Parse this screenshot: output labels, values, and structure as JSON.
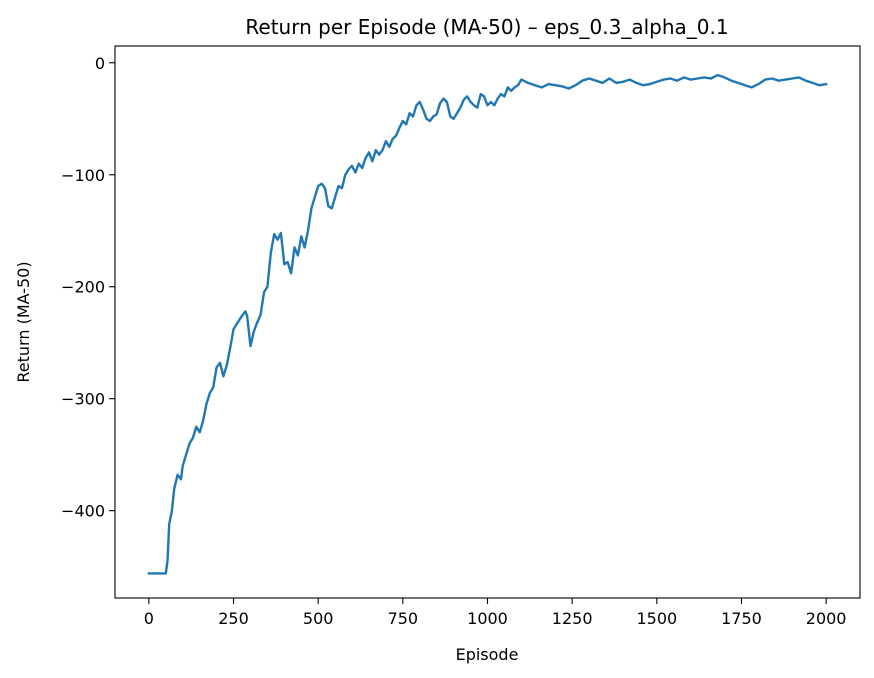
{
  "chart_data": {
    "type": "line",
    "title": "Return per Episode (MA-50) – eps_0.3_alpha_0.1",
    "xlabel": "Episode",
    "ylabel": "Return (MA-50)",
    "xlim": [
      -100,
      2100
    ],
    "ylim": [
      -478,
      15
    ],
    "xticks": [
      0,
      250,
      500,
      750,
      1000,
      1250,
      1500,
      1750,
      2000
    ],
    "xtick_labels": [
      "0",
      "250",
      "500",
      "750",
      "1000",
      "1250",
      "1500",
      "1750",
      "2000"
    ],
    "yticks": [
      -400,
      -300,
      -200,
      -100,
      0
    ],
    "ytick_labels": [
      "−400",
      "−300",
      "−200",
      "−100",
      "0"
    ],
    "grid": false,
    "series": [
      {
        "name": "MA-50",
        "color": "#1f77b4",
        "x": [
          0,
          50,
          55,
          60,
          68,
          75,
          85,
          95,
          100,
          110,
          120,
          130,
          140,
          150,
          160,
          170,
          180,
          190,
          200,
          210,
          220,
          230,
          240,
          250,
          262,
          275,
          285,
          290,
          300,
          310,
          320,
          330,
          340,
          350,
          360,
          370,
          380,
          390,
          400,
          410,
          420,
          430,
          440,
          450,
          460,
          470,
          480,
          490,
          500,
          510,
          520,
          530,
          540,
          550,
          560,
          570,
          580,
          590,
          600,
          610,
          620,
          630,
          640,
          650,
          660,
          670,
          680,
          690,
          700,
          710,
          720,
          730,
          740,
          750,
          760,
          770,
          780,
          790,
          800,
          810,
          820,
          830,
          840,
          850,
          860,
          870,
          880,
          890,
          900,
          910,
          920,
          930,
          940,
          950,
          960,
          970,
          980,
          990,
          1000,
          1010,
          1020,
          1030,
          1040,
          1050,
          1060,
          1070,
          1080,
          1090,
          1100,
          1120,
          1140,
          1160,
          1180,
          1200,
          1220,
          1240,
          1260,
          1280,
          1300,
          1320,
          1340,
          1360,
          1380,
          1400,
          1420,
          1440,
          1460,
          1480,
          1500,
          1520,
          1540,
          1560,
          1580,
          1600,
          1620,
          1640,
          1660,
          1680,
          1700,
          1720,
          1740,
          1760,
          1780,
          1800,
          1820,
          1840,
          1860,
          1880,
          1900,
          1920,
          1940,
          1960,
          1980,
          2000
        ],
        "values": [
          -456,
          -456,
          -445,
          -412,
          -400,
          -380,
          -368,
          -372,
          -360,
          -350,
          -340,
          -335,
          -325,
          -330,
          -320,
          -305,
          -295,
          -290,
          -272,
          -268,
          -280,
          -270,
          -255,
          -238,
          -232,
          -226,
          -222,
          -226,
          -253,
          -240,
          -232,
          -225,
          -205,
          -200,
          -170,
          -153,
          -158,
          -152,
          -180,
          -178,
          -188,
          -165,
          -172,
          -155,
          -165,
          -150,
          -130,
          -120,
          -110,
          -108,
          -112,
          -128,
          -130,
          -120,
          -110,
          -112,
          -100,
          -95,
          -92,
          -98,
          -90,
          -94,
          -85,
          -80,
          -88,
          -78,
          -82,
          -78,
          -70,
          -75,
          -68,
          -65,
          -58,
          -52,
          -55,
          -45,
          -48,
          -38,
          -35,
          -42,
          -50,
          -52,
          -48,
          -46,
          -36,
          -32,
          -35,
          -48,
          -50,
          -45,
          -40,
          -33,
          -30,
          -35,
          -38,
          -40,
          -28,
          -30,
          -38,
          -35,
          -38,
          -32,
          -28,
          -30,
          -22,
          -25,
          -22,
          -20,
          -15,
          -18,
          -20,
          -22,
          -19,
          -20,
          -21,
          -23,
          -20,
          -16,
          -14,
          -16,
          -18,
          -14,
          -18,
          -17,
          -15,
          -18,
          -20,
          -19,
          -17,
          -15,
          -14,
          -16,
          -13,
          -15,
          -14,
          -13,
          -14,
          -11,
          -13,
          -16,
          -18,
          -20,
          -22,
          -19,
          -15,
          -14,
          -16,
          -15,
          -14,
          -13,
          -16,
          -18,
          -20,
          -19
        ]
      }
    ]
  }
}
